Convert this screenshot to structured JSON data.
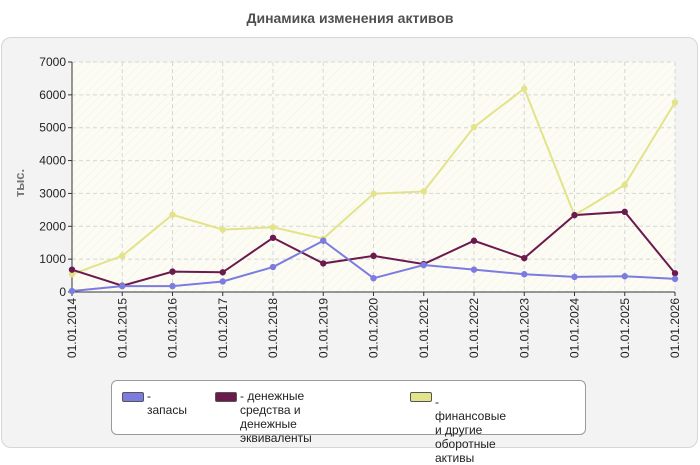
{
  "chart_data": {
    "type": "line",
    "title": "Динамика изменения активов",
    "ylabel": "тыс.",
    "xlabel": "",
    "ylim": [
      0,
      7000
    ],
    "yticks": [
      0,
      1000,
      2000,
      3000,
      4000,
      5000,
      6000,
      7000
    ],
    "grid": true,
    "legend_position": "bottom",
    "categories": [
      "01.01.2014",
      "01.01.2015",
      "01.01.2016",
      "01.01.2017",
      "01.01.2018",
      "01.01.2019",
      "01.01.2020",
      "01.01.2021",
      "01.01.2022",
      "01.01.2023",
      "01.01.2024",
      "01.01.2025",
      "01.01.2026"
    ],
    "series": [
      {
        "name": "- запасы",
        "color": "#7b7be0",
        "values": [
          30,
          180,
          180,
          320,
          760,
          1560,
          420,
          820,
          680,
          540,
          460,
          480,
          400
        ]
      },
      {
        "name": "- денежные средства и\nденежные эквиваленты",
        "color": "#6b1a4e",
        "values": [
          680,
          190,
          620,
          600,
          1650,
          870,
          1100,
          850,
          1560,
          1030,
          2340,
          2440,
          570
        ]
      },
      {
        "name": "- финансовые и другие\nоборотные активы",
        "color": "#e3e38c",
        "values": [
          540,
          1100,
          2350,
          1900,
          1970,
          1620,
          2990,
          3060,
          5020,
          6190,
          2340,
          3260,
          5770
        ]
      }
    ]
  }
}
